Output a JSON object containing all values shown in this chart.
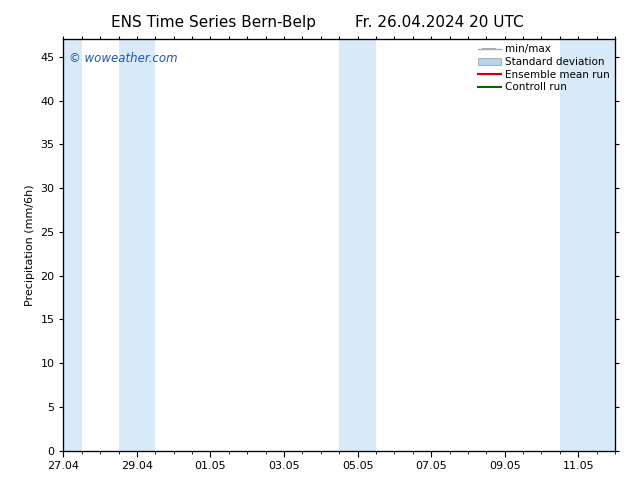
{
  "title_left": "ENS Time Series Bern-Belp",
  "title_right": "Fr. 26.04.2024 20 UTC",
  "ylabel": "Precipitation (mm/6h)",
  "watermark": "© woweather.com",
  "watermark_color": "#2255aa",
  "background_color": "#ffffff",
  "plot_bg_color": "#ffffff",
  "ylim": [
    0,
    47
  ],
  "yticks": [
    0,
    5,
    10,
    15,
    20,
    25,
    30,
    35,
    40,
    45
  ],
  "x_start_date": "2024-04-27",
  "num_days": 15,
  "xtick_labels": [
    "27.04",
    "29.04",
    "01.05",
    "03.05",
    "05.05",
    "07.05",
    "09.05",
    "11.05"
  ],
  "xtick_day_offsets": [
    0,
    2,
    4,
    6,
    8,
    10,
    12,
    14
  ],
  "shaded_day_bands": [
    {
      "day_start": 0.0,
      "day_end": 0.5
    },
    {
      "day_start": 1.5,
      "day_end": 2.5
    },
    {
      "day_start": 7.5,
      "day_end": 8.5
    },
    {
      "day_start": 13.5,
      "day_end": 15.0
    }
  ],
  "shade_color": "#d8eaf8",
  "legend_items": [
    {
      "label": "min/max",
      "color": "#aaaaaa",
      "style": "errorbar"
    },
    {
      "label": "Standard deviation",
      "color": "#b8d4ee",
      "style": "box"
    },
    {
      "label": "Ensemble mean run",
      "color": "#cc0000",
      "style": "line"
    },
    {
      "label": "Controll run",
      "color": "#006600",
      "style": "line"
    }
  ],
  "title_fontsize": 11,
  "label_fontsize": 8,
  "tick_fontsize": 8,
  "legend_fontsize": 7.5
}
